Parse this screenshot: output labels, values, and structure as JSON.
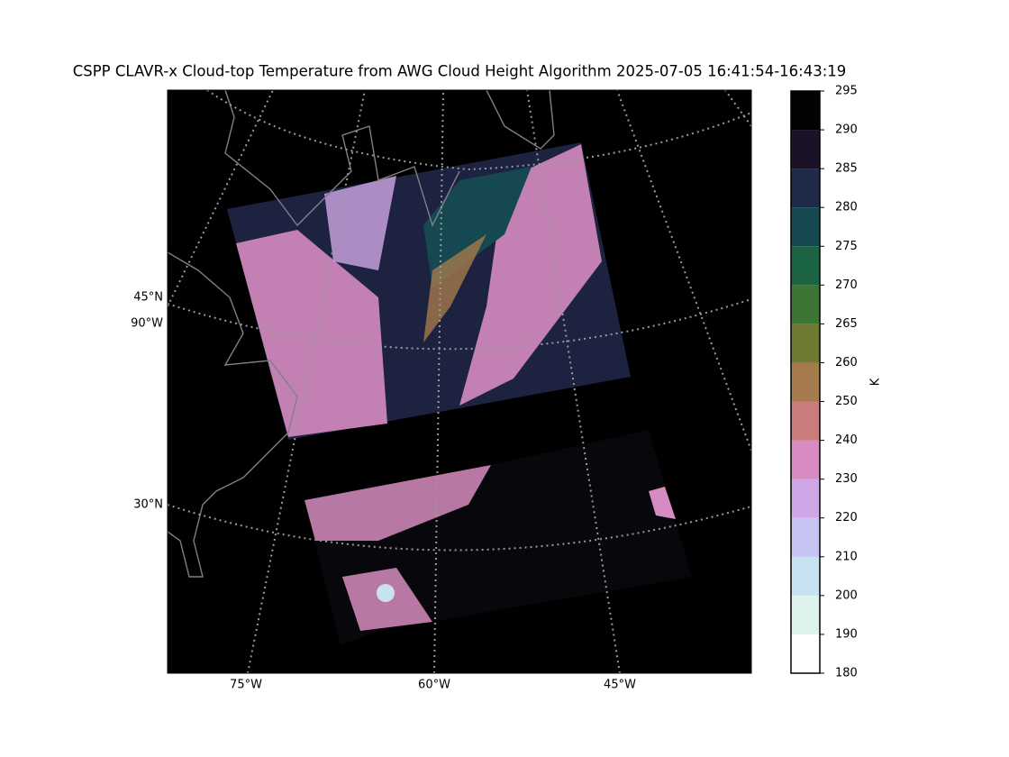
{
  "title": "CSPP CLAVR-x Cloud-top Temperature from AWG Cloud Height Algorithm 2025-07-05 16:41:54-16:43:19",
  "map": {
    "lon_labels": [
      "75°W",
      "60°W",
      "45°W"
    ],
    "lat_labels": [
      "45°N",
      "90°W",
      "30°N"
    ]
  },
  "colorbar": {
    "label": "K",
    "boundaries": [
      180,
      190,
      200,
      210,
      220,
      230,
      240,
      250,
      260,
      265,
      270,
      275,
      280,
      285,
      290,
      295
    ],
    "colors": [
      "#ffffff",
      "#dff3ee",
      "#c8e2f2",
      "#c5c4f2",
      "#d0a7e6",
      "#d68cc0",
      "#c97c7c",
      "#a57a4c",
      "#6f7a35",
      "#3d7535",
      "#1d6444",
      "#154851",
      "#1e2a48",
      "#1c1227",
      "#020202"
    ]
  }
}
